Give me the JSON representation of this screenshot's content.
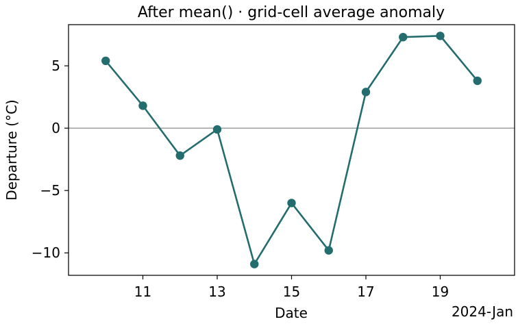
{
  "chart_data": {
    "type": "line",
    "title": "After mean() · grid-cell average anomaly",
    "xlabel": "Date",
    "ylabel": "Departure (°C)",
    "x_offset_label": "2024-Jan",
    "x": [
      "2024-01-10",
      "2024-01-11",
      "2024-01-12",
      "2024-01-13",
      "2024-01-14",
      "2024-01-15",
      "2024-01-16",
      "2024-01-17",
      "2024-01-18",
      "2024-01-19",
      "2024-01-20"
    ],
    "series": [
      {
        "values": [
          5.4,
          1.8,
          -2.2,
          -0.1,
          -10.9,
          -6.0,
          -9.8,
          2.9,
          7.3,
          7.4,
          3.8
        ],
        "color": "#236d6e"
      }
    ],
    "x_ticks": [
      {
        "date": "2024-01-11",
        "label": "11"
      },
      {
        "date": "2024-01-13",
        "label": "13"
      },
      {
        "date": "2024-01-15",
        "label": "15"
      },
      {
        "date": "2024-01-17",
        "label": "17"
      },
      {
        "date": "2024-01-19",
        "label": "19"
      }
    ],
    "y_ticks": [
      {
        "value": 5,
        "label": "5"
      },
      {
        "value": 0,
        "label": "0"
      },
      {
        "value": -5,
        "label": "−5"
      },
      {
        "value": -10,
        "label": "−10"
      }
    ],
    "xlim": [
      "2024-01-09",
      "2024-01-21"
    ],
    "ylim": [
      -11.8,
      8.3
    ],
    "reference_line": {
      "y": 0,
      "color": "#8a8a8a"
    },
    "grid": false,
    "legend": false
  }
}
